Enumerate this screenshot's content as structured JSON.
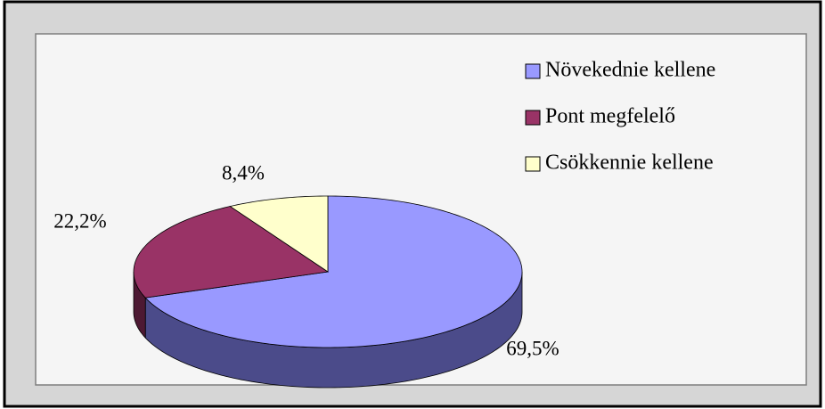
{
  "chart_data": {
    "type": "pie3d",
    "series": [
      {
        "name": "Növekednie kellene",
        "color": "#9999ff",
        "side_color": "#4b4b8a",
        "values": [
          69.5
        ],
        "value_labels": [
          "69,5%"
        ]
      },
      {
        "name": "Pont megfelelő",
        "color": "#993366",
        "side_color": "#4d1933",
        "values": [
          22.2
        ],
        "value_labels": [
          "22,2%"
        ]
      },
      {
        "name": "Csökkennie kellene",
        "color": "#ffffcc",
        "side_color": "#b3b38f",
        "values": [
          8.4
        ],
        "value_labels": [
          "8,4%"
        ]
      }
    ],
    "legend": "right"
  }
}
